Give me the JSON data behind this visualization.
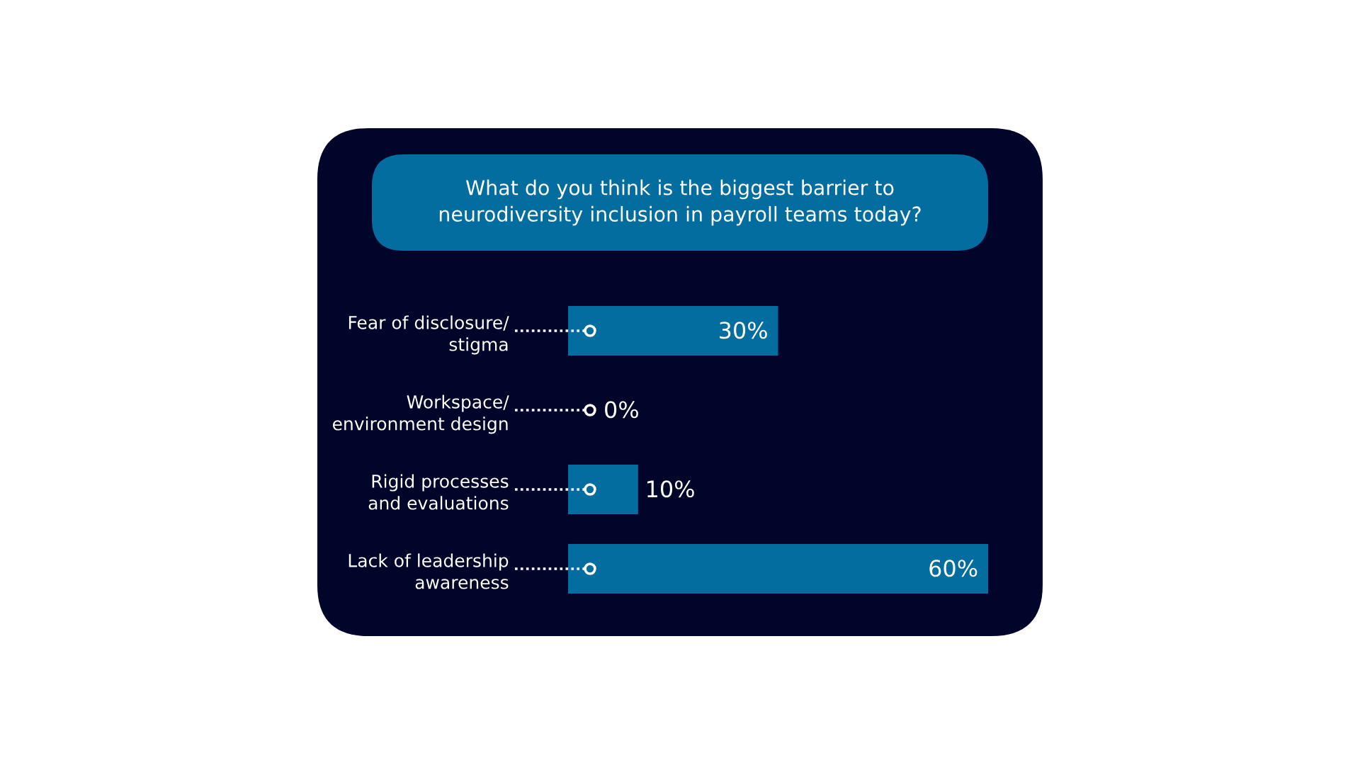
{
  "chart_data": {
    "type": "bar",
    "orientation": "horizontal",
    "title": "What do you think is the biggest barrier to\nneurodiversity inclusion in payroll teams today?",
    "categories": [
      "Fear of disclosure/\nstigma",
      "Workspace/\nenvironment design",
      "Rigid processes\nand evaluations",
      "Lack of leadership\nawareness"
    ],
    "values": [
      30,
      0,
      10,
      60
    ],
    "value_labels": [
      "30%",
      "0%",
      "10%",
      "60%"
    ],
    "color": "#036d9f",
    "tick_labels": "y"
  }
}
